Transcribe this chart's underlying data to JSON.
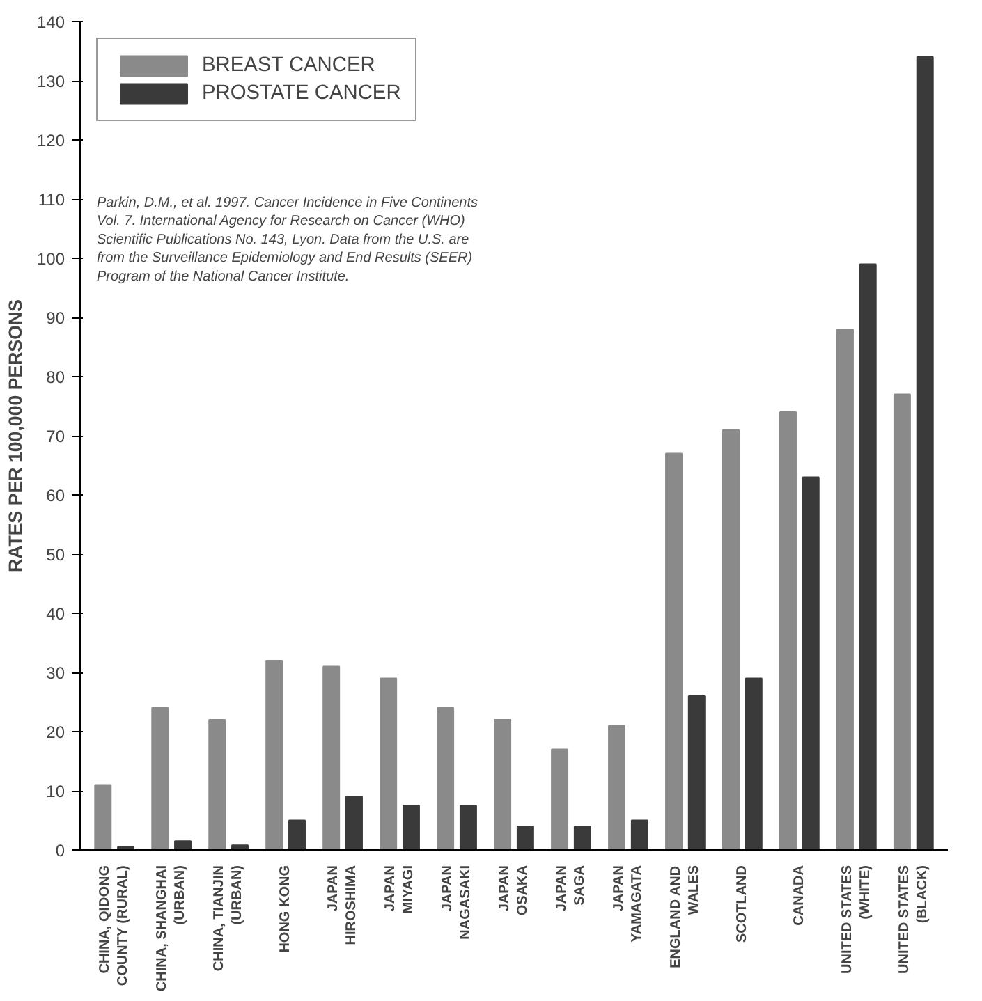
{
  "chart_data": {
    "type": "bar",
    "ylabel": "RATES PER 100,000 PERSONS",
    "categories": [
      "CHINA, QIDONG\nCOUNTY (RURAL)",
      "CHINA, SHANGHAI\n(URBAN)",
      "CHINA, TIANJIN\n(URBAN)",
      "HONG KONG",
      "JAPAN\nHIROSHIMA",
      "JAPAN\nMIYAGI",
      "JAPAN\nNAGASAKI",
      "JAPAN\nOSAKA",
      "JAPAN\nSAGA",
      "JAPAN\nYAMAGATA",
      "ENGLAND AND\nWALES",
      "SCOTLAND",
      "CANADA",
      "UNITED STATES\n(WHITE)",
      "UNITED STATES\n(BLACK)"
    ],
    "series": [
      {
        "name": "BREAST CANCER",
        "color": "#8a8a8a",
        "values": [
          11,
          24,
          22,
          32,
          31,
          29,
          24,
          22,
          17,
          21,
          67,
          71,
          74,
          88,
          77
        ]
      },
      {
        "name": "PROSTATE CANCER",
        "color": "#3a3a3a",
        "values": [
          0.5,
          1.5,
          0.8,
          5,
          9,
          7.5,
          7.5,
          4,
          4,
          5,
          26,
          29,
          63,
          99,
          134
        ]
      }
    ],
    "ylim": [
      0,
      140
    ],
    "yticks": [
      0,
      10,
      20,
      30,
      40,
      50,
      60,
      70,
      80,
      90,
      100,
      110,
      120,
      130,
      140
    ],
    "annotations": [
      "Parkin, D.M., et al. 1997. Cancer Incidence in Five Continents\nVol. 7. International Agency for Research on Cancer (WHO)\nScientific Publications No. 143, Lyon. Data from the U.S. are\nfrom the Surveillance Epidemiology and End Results (SEER)\nProgram of the National Cancer Institute."
    ],
    "legend": "top left",
    "grid": false
  }
}
